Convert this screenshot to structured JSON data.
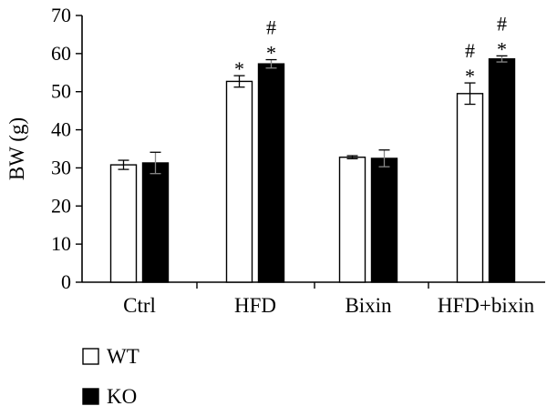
{
  "chart_data": {
    "type": "bar",
    "title": "",
    "xlabel": "",
    "ylabel": "BW (g)",
    "ylim": [
      0,
      70
    ],
    "yticks": [
      0,
      10,
      20,
      30,
      40,
      50,
      60,
      70
    ],
    "grid": false,
    "legend_position": "bottom-left",
    "categories": [
      "Ctrl",
      "HFD",
      "Bixin",
      "HFD+bixin"
    ],
    "series": [
      {
        "name": "WT",
        "color": "#ffffff",
        "values": [
          30.8,
          52.7,
          32.8,
          49.5
        ],
        "errors": [
          1.2,
          1.5,
          0.4,
          2.8
        ],
        "annotations": [
          "",
          "*",
          "",
          "#\n*"
        ]
      },
      {
        "name": "KO",
        "color": "#000000",
        "values": [
          31.3,
          57.3,
          32.5,
          58.6
        ],
        "errors": [
          2.8,
          1.1,
          2.2,
          0.8
        ],
        "annotations": [
          "",
          "#\n*",
          "",
          "#\n*"
        ]
      }
    ]
  }
}
